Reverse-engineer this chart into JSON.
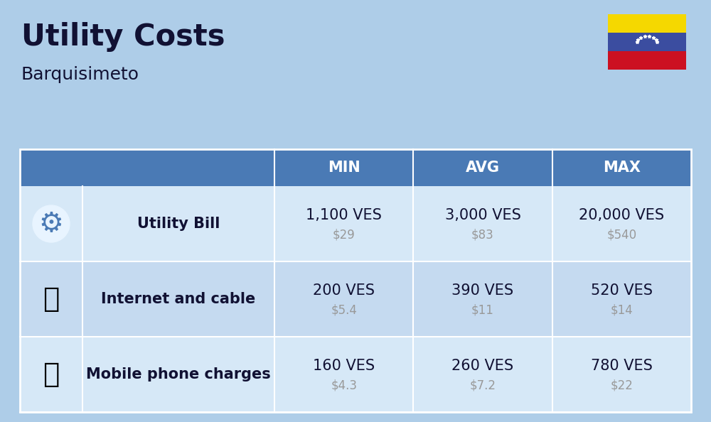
{
  "title": "Utility Costs",
  "subtitle": "Barquisimeto",
  "bg_color": "#aecde8",
  "header_bg": "#4a7ab5",
  "header_text_color": "#ffffff",
  "row_bg_light": "#d6e8f7",
  "row_bg_mid": "#c5daf0",
  "col_headers": [
    "MIN",
    "AVG",
    "MAX"
  ],
  "rows": [
    {
      "label": "Utility Bill",
      "min_ves": "1,100 VES",
      "min_usd": "$29",
      "avg_ves": "3,000 VES",
      "avg_usd": "$83",
      "max_ves": "20,000 VES",
      "max_usd": "$540"
    },
    {
      "label": "Internet and cable",
      "min_ves": "200 VES",
      "min_usd": "$5.4",
      "avg_ves": "390 VES",
      "avg_usd": "$11",
      "max_ves": "520 VES",
      "max_usd": "$14"
    },
    {
      "label": "Mobile phone charges",
      "min_ves": "160 VES",
      "min_usd": "$4.3",
      "avg_ves": "260 VES",
      "avg_usd": "$7.2",
      "max_ves": "780 VES",
      "max_usd": "$22"
    }
  ],
  "flag_colors": [
    "#f5d800",
    "#3b4da0",
    "#cc1021"
  ],
  "usd_color": "#999999",
  "ves_fontsize": 15,
  "usd_fontsize": 12,
  "label_fontsize": 15,
  "header_fontsize": 15,
  "title_fontsize": 30,
  "subtitle_fontsize": 18,
  "label_text_color": "#111133"
}
